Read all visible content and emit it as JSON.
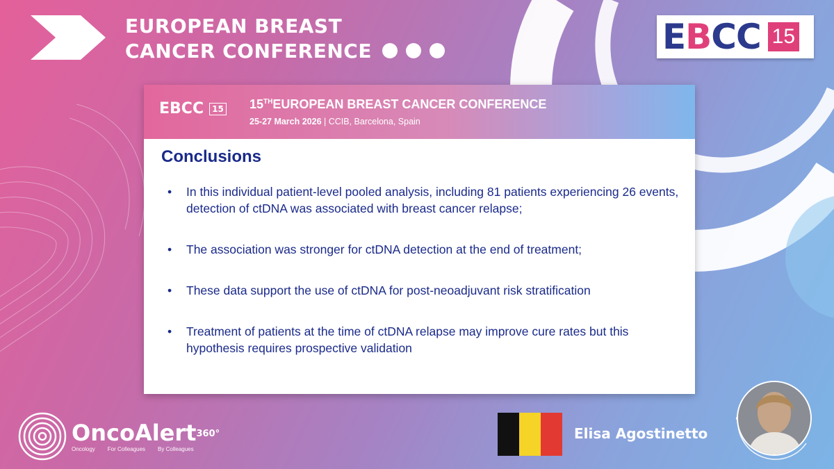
{
  "header": {
    "title_line1": "EUROPEAN BREAST",
    "title_line2": "CANCER CONFERENCE",
    "logo_letters_e": "E",
    "logo_letters_b": "B",
    "logo_letters_cc": "CC",
    "logo_number": "15"
  },
  "slide": {
    "logo_text": "EBCC",
    "logo_number": "15",
    "title_number": "15",
    "title_superscript": "TH",
    "title_text": "EUROPEAN BREAST CANCER CONFERENCE",
    "subtitle_dates": "25-27 March 2026",
    "subtitle_venue": " | CCIB, Barcelona, Spain",
    "heading": "Conclusions",
    "bullets": [
      "In this individual patient-level pooled analysis, including 81 patients experiencing 26 events, detection of ctDNA was associated with breast cancer relapse;",
      "The association was stronger for ctDNA detection at the end of treatment;",
      "These data support the use of ctDNA for post-neoadjuvant risk stratification",
      "Treatment of patients at the time of ctDNA relapse may improve cure rates but this hypothesis requires prospective validation"
    ],
    "bullet_symbol": "•"
  },
  "footer": {
    "brand_name": "OncoAlert",
    "brand_superscript": "360°",
    "tagline": [
      "Oncology",
      "For Colleagues",
      "By Colleagues"
    ],
    "speaker_name": "Elisa Agostinetto",
    "flag_colors": [
      "#111111",
      "#f5d327",
      "#e23a33"
    ]
  },
  "colors": {
    "accent_pink": "#e0407a",
    "navy": "#1a2a8a",
    "logo_blue": "#2b3a8c"
  }
}
